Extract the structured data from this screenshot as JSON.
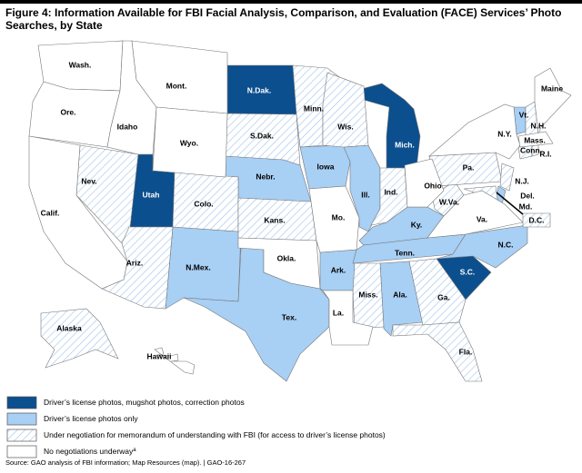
{
  "title": "Figure 4: Information Available for FBI Facial Analysis, Comparison, and Evaluation (FACE) Services’ Photo Searches, by State",
  "legend": [
    {
      "label": "Driver’s license photos, mugshot photos, correction photos",
      "color": "#0c4f8e",
      "hatched": false,
      "text_color": "#ffffff",
      "states": [
        "N.Dak.",
        "Utah",
        "Mich.",
        "S.C."
      ]
    },
    {
      "label": "Driver’s license photos only",
      "color": "#a8cff4",
      "hatched": false,
      "text_color": "#000000",
      "states": [
        "Nebr.",
        "Iowa",
        "Ill.",
        "N.Mex.",
        "Tex.",
        "Ark.",
        "Ky.",
        "Tenn.",
        "Ala.",
        "N.C.",
        "Vt.",
        "Del."
      ]
    },
    {
      "label": "Under negotiation for memorandum of understanding with FBI (for access to driver’s license photos)",
      "color": "#9fc4ea",
      "hatched": true,
      "text_color": "#000000",
      "states": [
        "Nev.",
        "Ariz.",
        "Colo.",
        "S.Dak.",
        "Kans.",
        "Minn.",
        "Wis.",
        "Ind.",
        "Miss.",
        "Ga.",
        "Fla.",
        "W.Va.",
        "Pa.",
        "Md.",
        "N.J.",
        "N.H.",
        "Conn.",
        "R.I.",
        "Alaska",
        "D.C."
      ]
    },
    {
      "label": "No negotiations underway",
      "note_marker": "a",
      "color": "#ffffff",
      "hatched": false,
      "text_color": "#000000",
      "states": [
        "Wash.",
        "Ore.",
        "Calif.",
        "Idaho",
        "Mont.",
        "Wyo.",
        "Okla.",
        "Mo.",
        "La.",
        "Ohio",
        "Va.",
        "N.Y.",
        "Maine",
        "Mass.",
        "Hawaii"
      ]
    }
  ],
  "source": "Source: GAO analysis of FBI information; Map Resources (map).  |  GAO-16-267"
}
